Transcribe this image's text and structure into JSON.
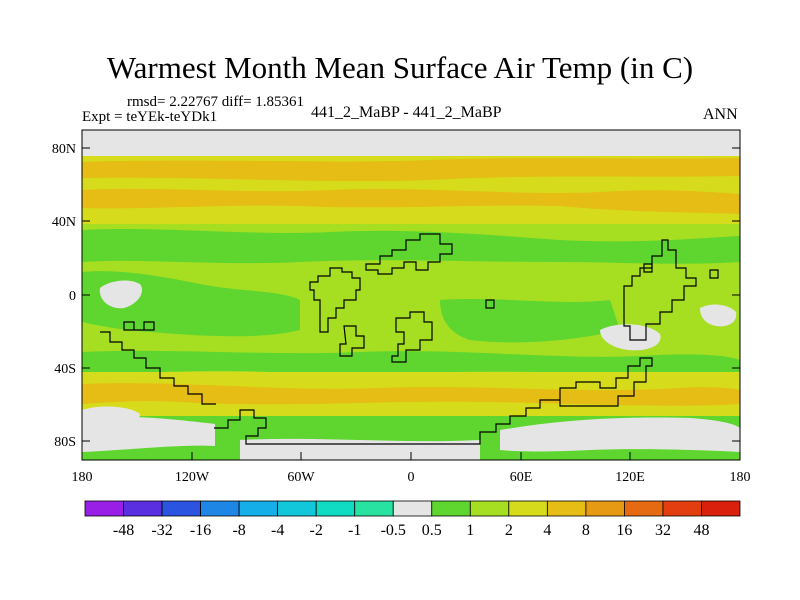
{
  "title": "Warmest Month Mean Surface Air Temp (in C)",
  "stats": "rmsd= 2.22767 diff= 1.85361",
  "expt": "Expt = teYEk-teYDk1",
  "cases": "441_2_MaBP - 441_2_MaBP",
  "season": "ANN",
  "y_ticks": [
    "80N",
    "40N",
    "0",
    "40S",
    "80S"
  ],
  "x_ticks": [
    "180",
    "120W",
    "60W",
    "0",
    "60E",
    "120E",
    "180"
  ],
  "colorbar": {
    "labels": [
      "-48",
      "-32",
      "-16",
      "-8",
      "-4",
      "-2",
      "-1",
      "-0.5",
      "0.5",
      "1",
      "2",
      "4",
      "8",
      "16",
      "32",
      "48"
    ],
    "colors": [
      "#9a1fe6",
      "#5a2fe0",
      "#2b55e0",
      "#1e87e6",
      "#16aee8",
      "#12c7da",
      "#10dcc4",
      "#27e2a0",
      "#e5e5e5",
      "#5fd62f",
      "#a6de22",
      "#d6dc1c",
      "#e5bd14",
      "#e69a14",
      "#e66a12",
      "#e23e10",
      "#d8200c"
    ]
  },
  "field_colors": {
    "missing": "#e5e5e5",
    "light_green": "#a6de22",
    "yellow_green": "#d6dc1c",
    "gold": "#e5bd14",
    "green": "#5fd62f"
  }
}
